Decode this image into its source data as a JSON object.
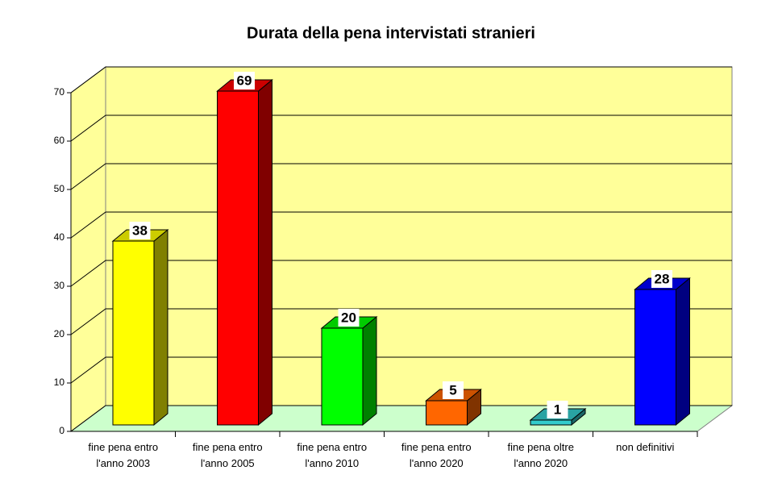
{
  "chart_data": {
    "type": "bar3d",
    "title": "Durata della pena intervistati stranieri",
    "categories": [
      "fine pena entro\nl'anno 2003",
      "fine pena entro\nl'anno 2005",
      "fine pena entro\nl'anno 2010",
      "fine pena entro\nl'anno 2020",
      "fine pena oltre\nl'anno 2020",
      "non definitivi"
    ],
    "values": [
      38,
      69,
      20,
      5,
      1,
      28
    ],
    "colors": [
      "#ffff00",
      "#ff0000",
      "#00ff00",
      "#ff6600",
      "#33cccc",
      "#0000ff"
    ],
    "ylim": [
      0,
      70
    ],
    "yticks": [
      0,
      10,
      20,
      30,
      40,
      50,
      60,
      70
    ],
    "grid": true
  }
}
